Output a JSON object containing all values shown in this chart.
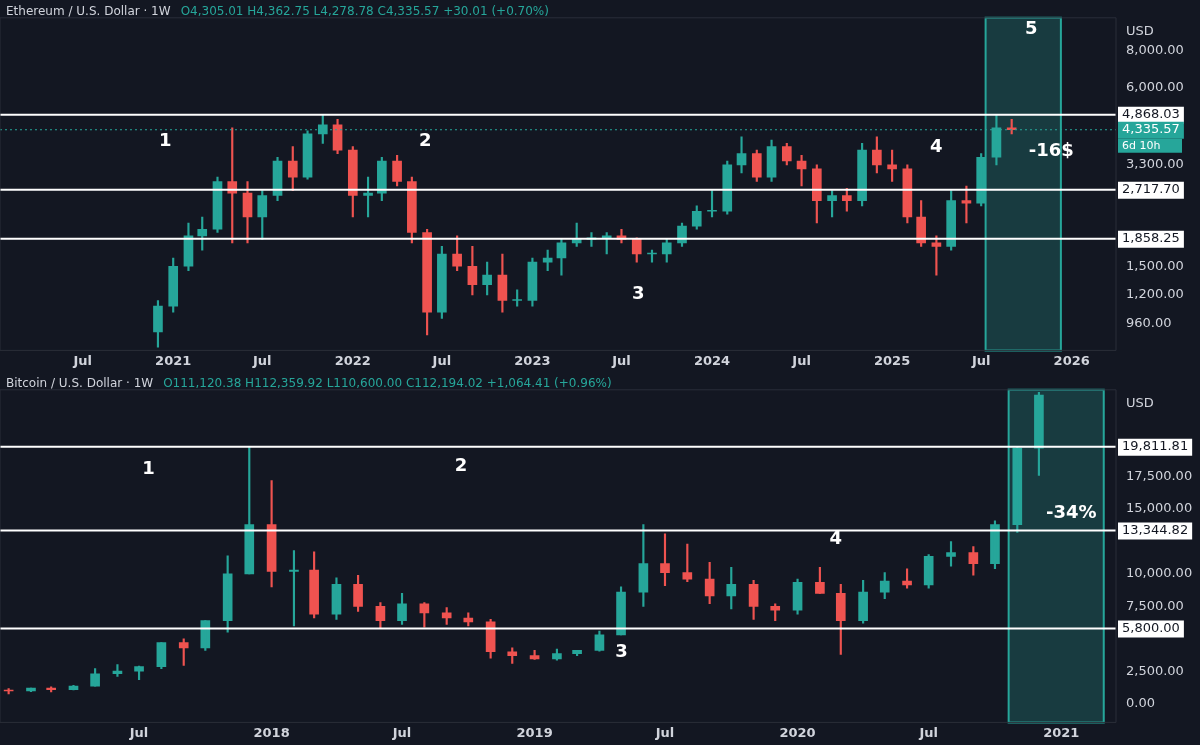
{
  "chart_data": [
    {
      "type": "candlestick",
      "title": "Ethereum / U.S. Dollar · 1W",
      "subtitle": "O4,305.01 H4,362.75 L4,278.78 C4,335.57 +30.01 (+0.70%)",
      "ylabel": "USD",
      "log": true,
      "grid": false,
      "legend": false,
      "x": [
        "2020-12",
        "2021-01",
        "2021-02",
        "2021-03",
        "2021-04",
        "2021-05",
        "2021-06",
        "2021-07",
        "2021-08",
        "2021-09",
        "2021-10",
        "2021-11",
        "2021-12",
        "2022-01",
        "2022-02",
        "2022-03",
        "2022-04",
        "2022-05",
        "2022-06",
        "2022-07",
        "2022-08",
        "2022-09",
        "2022-10",
        "2022-11",
        "2022-12",
        "2023-01",
        "2023-02",
        "2023-03",
        "2023-04",
        "2023-05",
        "2023-06",
        "2023-07",
        "2023-08",
        "2023-09",
        "2023-10",
        "2023-11",
        "2023-12",
        "2024-01",
        "2024-02",
        "2024-03",
        "2024-04",
        "2024-05",
        "2024-06",
        "2024-07",
        "2024-08",
        "2024-09",
        "2024-10",
        "2024-11",
        "2024-12",
        "2025-01",
        "2025-02",
        "2025-03",
        "2025-04",
        "2025-05",
        "2025-06",
        "2025-07",
        "2025-08",
        "2025-09"
      ],
      "ohlc": [
        [
          900,
          1150,
          800,
          1100
        ],
        [
          1100,
          1600,
          1050,
          1500
        ],
        [
          1500,
          2100,
          1450,
          1900
        ],
        [
          1900,
          2200,
          1700,
          2000
        ],
        [
          2000,
          3000,
          1950,
          2900
        ],
        [
          2900,
          4400,
          1800,
          2650
        ],
        [
          2650,
          2900,
          1800,
          2200
        ],
        [
          2200,
          2700,
          1850,
          2600
        ],
        [
          2600,
          3500,
          2500,
          3400
        ],
        [
          3400,
          3800,
          2700,
          3000
        ],
        [
          3000,
          4300,
          2950,
          4200
        ],
        [
          4200,
          4850,
          3900,
          4500
        ],
        [
          4500,
          4700,
          3600,
          3700
        ],
        [
          3700,
          3800,
          2200,
          2600
        ],
        [
          2600,
          3000,
          2200,
          2650
        ],
        [
          2650,
          3500,
          2500,
          3400
        ],
        [
          3400,
          3550,
          2800,
          2900
        ],
        [
          2900,
          3000,
          1800,
          1950
        ],
        [
          1950,
          2000,
          880,
          1050
        ],
        [
          1050,
          1750,
          1000,
          1650
        ],
        [
          1650,
          1900,
          1450,
          1500
        ],
        [
          1500,
          1750,
          1200,
          1300
        ],
        [
          1300,
          1550,
          1200,
          1400
        ],
        [
          1400,
          1650,
          1050,
          1150
        ],
        [
          1150,
          1250,
          1100,
          1150
        ],
        [
          1150,
          1600,
          1100,
          1550
        ],
        [
          1550,
          1700,
          1450,
          1600
        ],
        [
          1600,
          1850,
          1400,
          1800
        ],
        [
          1800,
          2100,
          1750,
          1850
        ],
        [
          1850,
          1950,
          1750,
          1870
        ],
        [
          1870,
          1950,
          1650,
          1900
        ],
        [
          1900,
          2000,
          1800,
          1850
        ],
        [
          1850,
          1870,
          1550,
          1650
        ],
        [
          1650,
          1700,
          1550,
          1650
        ],
        [
          1650,
          1850,
          1550,
          1800
        ],
        [
          1800,
          2100,
          1750,
          2050
        ],
        [
          2050,
          2400,
          2000,
          2300
        ],
        [
          2300,
          2700,
          2200,
          2300
        ],
        [
          2300,
          3400,
          2250,
          3300
        ],
        [
          3300,
          4100,
          3100,
          3600
        ],
        [
          3600,
          3700,
          2900,
          3000
        ],
        [
          3000,
          4000,
          2900,
          3800
        ],
        [
          3800,
          3900,
          3300,
          3400
        ],
        [
          3400,
          3550,
          2800,
          3200
        ],
        [
          3200,
          3300,
          2100,
          2500
        ],
        [
          2500,
          2700,
          2200,
          2600
        ],
        [
          2600,
          2750,
          2300,
          2500
        ],
        [
          2500,
          3900,
          2400,
          3700
        ],
        [
          3700,
          4100,
          3100,
          3300
        ],
        [
          3300,
          3700,
          2900,
          3200
        ],
        [
          3200,
          3300,
          2100,
          2200
        ],
        [
          2200,
          2500,
          1750,
          1800
        ],
        [
          1800,
          1900,
          1400,
          1750
        ],
        [
          1750,
          2700,
          1700,
          2500
        ],
        [
          2500,
          2800,
          2100,
          2450
        ],
        [
          2450,
          3600,
          2400,
          3500
        ],
        [
          3500,
          4850,
          3300,
          4400
        ],
        [
          4400,
          4700,
          4200,
          4335.57
        ]
      ],
      "xlim": [
        "2020-01-15",
        "2026-04-01"
      ],
      "xticks": [
        {
          "value": "2020-07",
          "label": "Jul"
        },
        {
          "value": "2021",
          "label": "2021"
        },
        {
          "value": "2021-07",
          "label": "Jul"
        },
        {
          "value": "2022",
          "label": "2022"
        },
        {
          "value": "2022-07",
          "label": "Jul"
        },
        {
          "value": "2023",
          "label": "2023"
        },
        {
          "value": "2023-07",
          "label": "Jul"
        },
        {
          "value": "2024",
          "label": "2024"
        },
        {
          "value": "2024-07",
          "label": "Jul"
        },
        {
          "value": "2025",
          "label": "2025"
        },
        {
          "value": "2025-07",
          "label": "Jul"
        },
        {
          "value": "2026",
          "label": "2026"
        }
      ],
      "ylim": [
        780,
        10350
      ],
      "yticks": [
        {
          "value": 960,
          "label": "960.00"
        },
        {
          "value": 1200,
          "label": "1,200.00"
        },
        {
          "value": 1500,
          "label": "1,500.00"
        },
        {
          "value": 3300,
          "label": "3,300.00"
        },
        {
          "value": 6000,
          "label": "6,000.00"
        },
        {
          "value": 8000,
          "label": "8,000.00"
        }
      ],
      "ref_lines": [
        {
          "axis": "y",
          "value": 4868.03,
          "label": "4,868.03",
          "color": "#ffffff",
          "line_style": "solid"
        },
        {
          "axis": "y",
          "value": 2717.7,
          "label": "2,717.70",
          "color": "#ffffff",
          "line_style": "solid"
        },
        {
          "axis": "y",
          "value": 1858.25,
          "label": "1,858.25",
          "color": "#ffffff",
          "line_style": "solid"
        },
        {
          "axis": "y",
          "value": 4335.57,
          "label": "4,335.57",
          "color": "#26a69a",
          "line_style": "dotted"
        }
      ],
      "bands": [
        {
          "axis": "x",
          "from": "2025-07-10",
          "to": "2025-12-10",
          "color": "#26a69a"
        }
      ],
      "annotations": [
        "1",
        "2",
        "3",
        "4",
        "5",
        "-16$",
        "6d 10h"
      ]
    },
    {
      "type": "candlestick",
      "title": "Bitcoin / U.S. Dollar · 1W",
      "subtitle": "O111,120.38 H112,359.92 L110,600.00 C112,194.02 +1,064.41 (+0.96%)",
      "ylabel": "USD",
      "grid": false,
      "legend": false,
      "x": [
        "2017-01",
        "2017-02",
        "2017-03",
        "2017-04",
        "2017-05",
        "2017-06",
        "2017-07",
        "2017-08",
        "2017-09",
        "2017-10",
        "2017-11",
        "2017-12",
        "2018-01",
        "2018-02",
        "2018-03",
        "2018-04",
        "2018-05",
        "2018-06",
        "2018-07",
        "2018-08",
        "2018-09",
        "2018-10",
        "2018-11",
        "2018-12",
        "2019-01",
        "2019-02",
        "2019-03",
        "2019-04",
        "2019-05",
        "2019-06",
        "2019-07",
        "2019-08",
        "2019-09",
        "2019-10",
        "2019-11",
        "2019-12",
        "2020-01",
        "2020-02",
        "2020-03",
        "2020-04",
        "2020-05",
        "2020-06",
        "2020-07",
        "2020-08",
        "2020-09",
        "2020-10",
        "2020-11",
        "2020-12"
      ],
      "ohlc": [
        [
          1000,
          1150,
          750,
          970
        ],
        [
          970,
          1200,
          920,
          1190
        ],
        [
          1190,
          1300,
          900,
          1080
        ],
        [
          1080,
          1400,
          1060,
          1350
        ],
        [
          1350,
          2700,
          1350,
          2300
        ],
        [
          2300,
          3000,
          2100,
          2500
        ],
        [
          2500,
          2900,
          1850,
          2850
        ],
        [
          2850,
          4700,
          2700,
          4700
        ],
        [
          4700,
          5000,
          2950,
          4300
        ],
        [
          4300,
          6400,
          4100,
          6400
        ],
        [
          6400,
          11400,
          5500,
          10000
        ],
        [
          10000,
          19800,
          10000,
          13800
        ],
        [
          13800,
          17200,
          9000,
          10200
        ],
        [
          10200,
          11800,
          6000,
          10300
        ],
        [
          10300,
          11700,
          6600,
          6900
        ],
        [
          6900,
          9700,
          6500,
          9200
        ],
        [
          9200,
          9900,
          7100,
          7500
        ],
        [
          7500,
          7800,
          5800,
          6400
        ],
        [
          6400,
          8500,
          6100,
          7700
        ],
        [
          7700,
          7800,
          5900,
          7000
        ],
        [
          7000,
          7400,
          6100,
          6600
        ],
        [
          6600,
          7000,
          6000,
          6300
        ],
        [
          6300,
          6500,
          3500,
          4000
        ],
        [
          4000,
          4300,
          3100,
          3700
        ],
        [
          3700,
          4100,
          3400,
          3450
        ],
        [
          3450,
          4200,
          3350,
          3850
        ],
        [
          3850,
          4100,
          3700,
          4100
        ],
        [
          4100,
          5600,
          4050,
          5300
        ],
        [
          5300,
          9000,
          5300,
          8600
        ],
        [
          8600,
          13800,
          7500,
          10800
        ],
        [
          10800,
          13100,
          9100,
          10100
        ],
        [
          10100,
          12300,
          9400,
          9600
        ],
        [
          9600,
          10900,
          7700,
          8300
        ],
        [
          8300,
          10500,
          7300,
          9200
        ],
        [
          9200,
          9500,
          6500,
          7500
        ],
        [
          7500,
          7700,
          6400,
          7200
        ],
        [
          7200,
          9600,
          6900,
          9350
        ],
        [
          9350,
          10500,
          8500,
          8500
        ],
        [
          8500,
          9200,
          3800,
          6400
        ],
        [
          6400,
          9500,
          6200,
          8600
        ],
        [
          8600,
          10100,
          8100,
          9450
        ],
        [
          9450,
          10400,
          8900,
          9150
        ],
        [
          9150,
          11500,
          8900,
          11350
        ],
        [
          11350,
          12500,
          10600,
          11650
        ],
        [
          11650,
          12100,
          9900,
          10800
        ],
        [
          10800,
          14100,
          10400,
          13800
        ],
        [
          13800,
          19800,
          13200,
          19700
        ],
        [
          19700,
          24000,
          17600,
          23800
        ]
      ],
      "xlim": [
        "2016-12-20",
        "2021-03-18"
      ],
      "xticks": [
        {
          "value": "2017-07",
          "label": "Jul"
        },
        {
          "value": "2018",
          "label": "2018"
        },
        {
          "value": "2018-07",
          "label": "Jul"
        },
        {
          "value": "2019",
          "label": "2019"
        },
        {
          "value": "2019-07",
          "label": "Jul"
        },
        {
          "value": "2020",
          "label": "2020"
        },
        {
          "value": "2020-07",
          "label": "Jul"
        },
        {
          "value": "2021",
          "label": "2021"
        }
      ],
      "ylim": [
        -1450,
        24200
      ],
      "yticks": [
        {
          "value": 0,
          "label": "0.00"
        },
        {
          "value": 2500,
          "label": "2,500.00"
        },
        {
          "value": 7500,
          "label": "7,500.00"
        },
        {
          "value": 10000,
          "label": "10,000.00"
        },
        {
          "value": 15000,
          "label": "15,000.00"
        },
        {
          "value": 17500,
          "label": "17,500.00"
        }
      ],
      "ref_lines": [
        {
          "axis": "y",
          "value": 19811.81,
          "label": "19,811.81",
          "color": "#ffffff",
          "line_style": "solid"
        },
        {
          "axis": "y",
          "value": 13344.82,
          "label": "13,344.82",
          "color": "#ffffff",
          "line_style": "solid"
        },
        {
          "axis": "y",
          "value": 5800,
          "label": "5,800.00",
          "color": "#ffffff",
          "line_style": "solid"
        }
      ],
      "bands": [
        {
          "axis": "x",
          "from": "2020-10-20",
          "to": "2021-03-01",
          "color": "#26a69a"
        }
      ],
      "annotations": [
        "1",
        "2",
        "3",
        "4",
        "-34%"
      ]
    }
  ]
}
